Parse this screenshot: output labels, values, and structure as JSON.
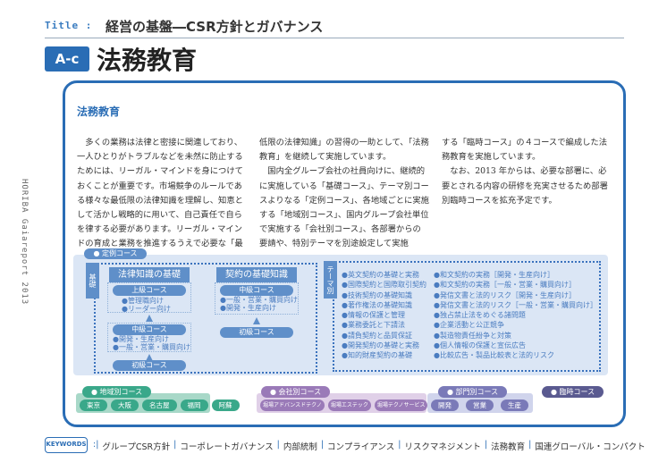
{
  "header": {
    "label": "Title :",
    "title": "経営の基盤―CSR方針とガバナンス",
    "badge": "A-c",
    "page_title": "法務教育"
  },
  "side_text": "HORIBA Gaiareport 2013",
  "section": {
    "heading": "法務教育",
    "columns": [
      "　多くの業務は法律と密接に関連しており、一人ひとりがトラブルなどを未然に防止するためには、リーガル・マインドを身につけておくことが重要です。市場競争のルールである様々な最低限の法律知識を理解し、知恵として活かし戦略的に用いて、自己責任で自らを律する必要があります。リーガル・マインドの育成と業務を推進するうえで必要な「最",
      "低限の法律知識」の習得の一助として、「法務教育」を継続して実施しています。\n　国内全グループ会社の社員向けに、継続的に実施している「基礎コース」、テーマ別コースよりなる「定例コース」、各地域ごとに実施する「地域別コース」、国内グループ会社単位で実施する「会社別コース」、各部署からの要請や、特別テーマを別途設定して実施",
      "する「臨時コース」の４コースで編成した法務教育を実施しています。\n　なお、2013 年からは、必要な部署に、必要とされる内容の研修を充実させるため部署別臨時コースを拡充予定です。"
    ]
  },
  "diagram": {
    "regular_label": "● 定例コース",
    "basic_tab": "基礎",
    "legal": {
      "title": "法律知識の基礎",
      "advanced": "上級コース",
      "advanced_items": [
        "●管理職向け",
        "●リーダー向け"
      ],
      "intermediate": "中級コース",
      "intermediate_items": [
        "●開発・生産向け",
        "●一般・営業・購買向け"
      ],
      "beginner": "初級コース"
    },
    "contract": {
      "title": "契約の基礎知識",
      "intermediate": "中級コース",
      "intermediate_items": [
        "●一般・営業・購買向け",
        "●開発・生産向け"
      ],
      "beginner": "初級コース"
    },
    "theme_tab": "テーマ別",
    "theme_col1": [
      "●英文契約の基礎と実務",
      "●国際契約と国際取引契約",
      "●技術契約の基礎知識",
      "●著作権法の基礎知識",
      "●情報の保護と管理",
      "●業務委託と下請法",
      "●請負契約と品質保証",
      "●開発契約の基礎と実務",
      "●知的財産契約の基礎"
    ],
    "theme_col2": [
      "●和文契約の実務［開発・生産向け］",
      "●和文契約の実務［一般・営業・購買向け］",
      "●発信文書と法的リスク［開発・生産向け］",
      "●発信文書と法的リスク［一般・営業・購買向け］",
      "●独占禁止法をめぐる諸問題",
      "●企業活動と公正競争",
      "●製造物責任紛争と対策",
      "●個人情報の保護と宣伝広告",
      "●比較広告・製品比較表と法的リスク"
    ],
    "regional": {
      "label": "● 地域別コース",
      "items": [
        "東京",
        "大阪",
        "名古屋",
        "福岡",
        "阿蘇"
      ],
      "color": "#3aa88a",
      "bg": "#a8d8c8"
    },
    "company": {
      "label": "● 会社別コース",
      "items": [
        "堀場アドバンスドテクノ",
        "堀場エステック",
        "堀場テクノサービス"
      ],
      "color": "#9a7ab8",
      "bg": "#e0d0e8"
    },
    "department": {
      "label": "● 部門別コース",
      "items": [
        "開発",
        "営業",
        "生産"
      ],
      "color": "#7a7ab8",
      "bg": "#d0d4ec"
    },
    "adhoc": {
      "label": "● 臨時コース",
      "color": "#5a5a90"
    }
  },
  "keywords": {
    "label": "KEYWORDS",
    "items": [
      "グループCSR方針",
      "コーポレートガバナンス",
      "内部統制",
      "コンプライアンス",
      "リスクマネジメント",
      "法務教育",
      "国連グローバル・コンパクト"
    ]
  },
  "colors": {
    "accent": "#2a6db5",
    "diagram_bg": "#dbe6f5",
    "diagram_blue": "#5f8fc9"
  }
}
